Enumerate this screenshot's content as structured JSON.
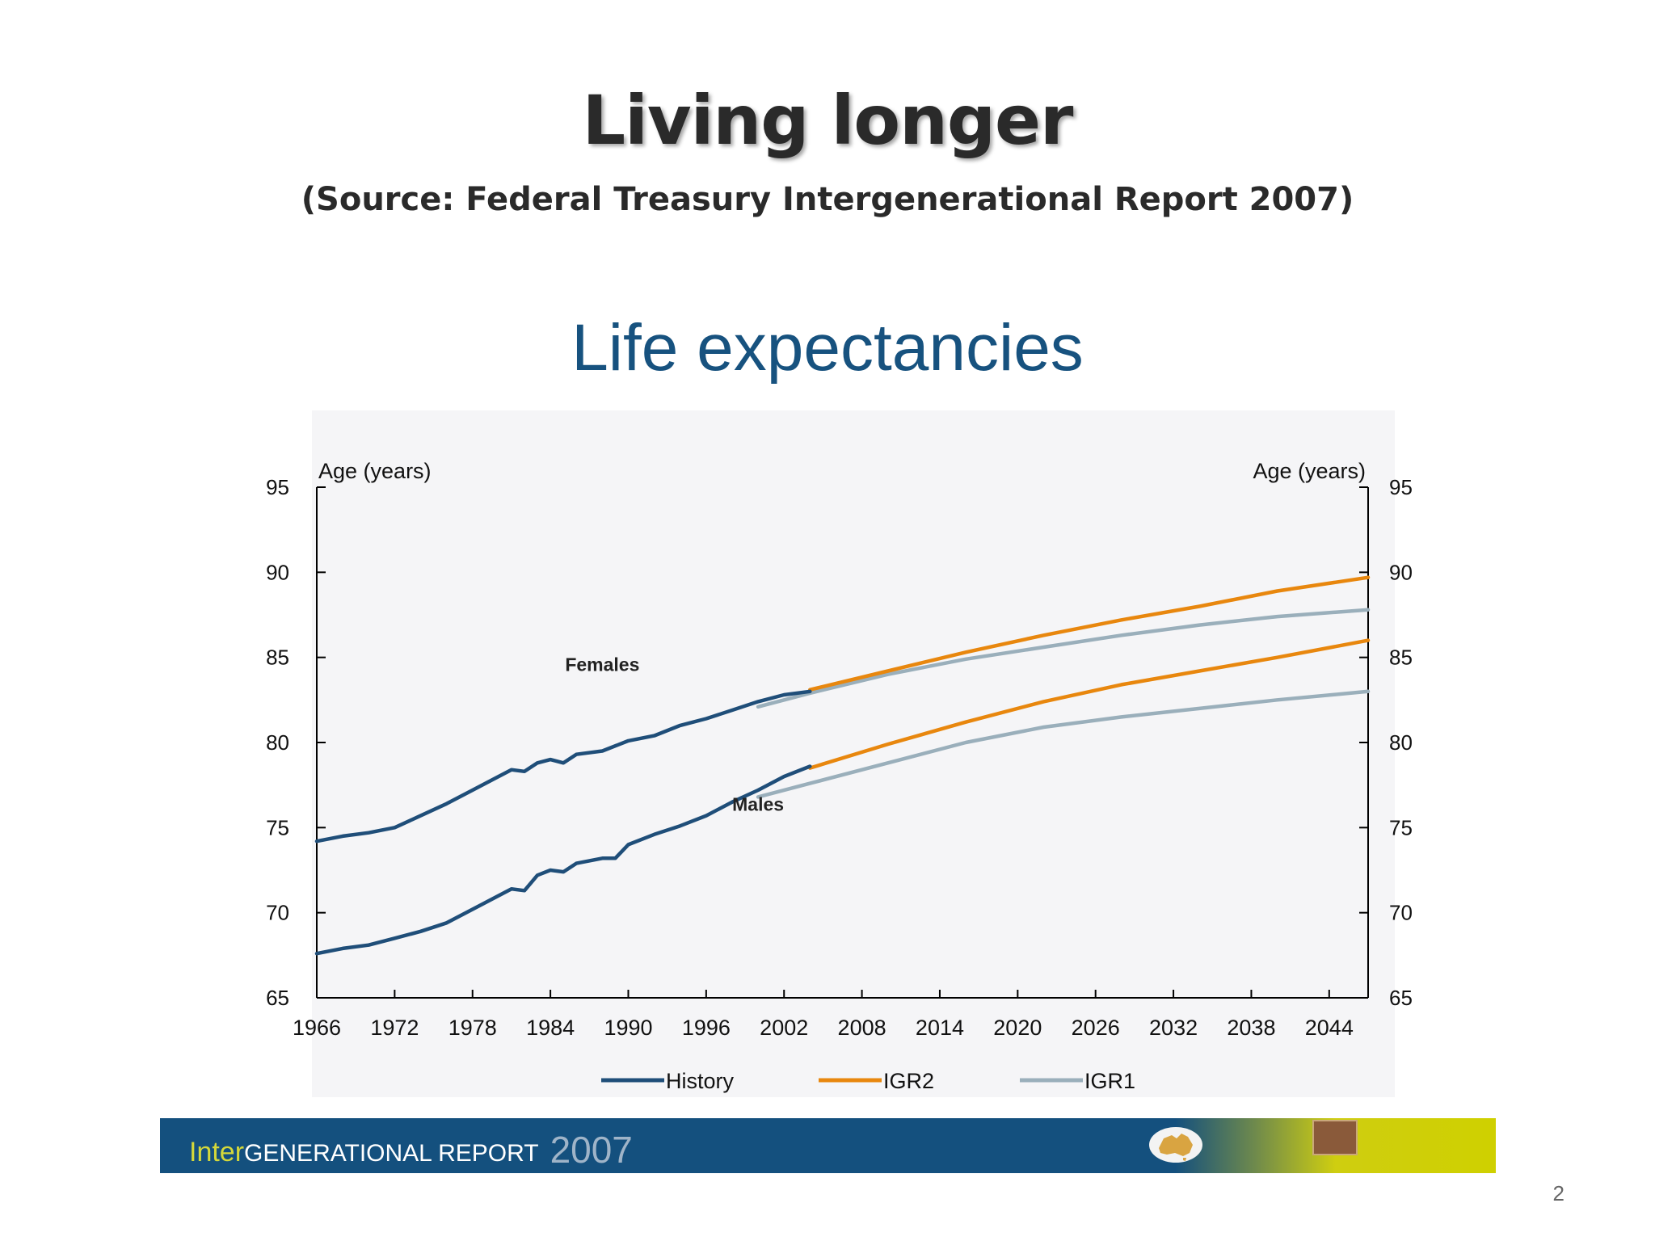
{
  "slide": {
    "title": "Living longer",
    "subtitle": "(Source: Federal Treasury Intergenerational Report 2007)",
    "page_number": "2"
  },
  "banner": {
    "brand_inter": "Inter",
    "brand_generational": "GENERATIONAL REPORT",
    "brand_year": "2007"
  },
  "colors": {
    "history": "#1f4e79",
    "igr2": "#e8870e",
    "igr1": "#9aafbb",
    "chart_title": "#17527f"
  },
  "chart_data": {
    "type": "line",
    "title": "Life expectancies",
    "ylabel_left": "Age (years)",
    "ylabel_right": "Age (years)",
    "ylim": [
      65,
      95
    ],
    "yticks": [
      65,
      70,
      75,
      80,
      85,
      90,
      95
    ],
    "xlim": [
      1966,
      2047
    ],
    "xticks": [
      1966,
      1972,
      1978,
      1984,
      1990,
      1996,
      2002,
      2008,
      2014,
      2020,
      2026,
      2032,
      2038,
      2044
    ],
    "legend": [
      "History",
      "IGR2",
      "IGR1"
    ],
    "legend_position": "bottom",
    "annotations": [
      {
        "text": "Females",
        "x": 1988,
        "y": 84.2
      },
      {
        "text": "Males",
        "x": 2000,
        "y": 76.0
      }
    ],
    "series": [
      {
        "name": "History",
        "group": "Females",
        "x": [
          1966,
          1968,
          1970,
          1972,
          1974,
          1976,
          1978,
          1980,
          1981,
          1982,
          1983,
          1984,
          1985,
          1986,
          1988,
          1990,
          1992,
          1994,
          1996,
          1998,
          2000,
          2002,
          2004
        ],
        "y": [
          74.2,
          74.5,
          74.7,
          75.0,
          75.7,
          76.4,
          77.2,
          78.0,
          78.4,
          78.3,
          78.8,
          79.0,
          78.8,
          79.3,
          79.5,
          80.1,
          80.4,
          81.0,
          81.4,
          81.9,
          82.4,
          82.8,
          83.0
        ]
      },
      {
        "name": "History",
        "group": "Males",
        "x": [
          1966,
          1968,
          1970,
          1972,
          1974,
          1976,
          1978,
          1980,
          1981,
          1982,
          1983,
          1984,
          1985,
          1986,
          1988,
          1989,
          1990,
          1992,
          1994,
          1996,
          1998,
          2000,
          2002,
          2004
        ],
        "y": [
          67.6,
          67.9,
          68.1,
          68.5,
          68.9,
          69.4,
          70.2,
          71.0,
          71.4,
          71.3,
          72.2,
          72.5,
          72.4,
          72.9,
          73.2,
          73.2,
          74.0,
          74.6,
          75.1,
          75.7,
          76.5,
          77.2,
          78.0,
          78.6
        ]
      },
      {
        "name": "IGR2",
        "group": "Females",
        "x": [
          2004,
          2010,
          2016,
          2022,
          2028,
          2034,
          2040,
          2047
        ],
        "y": [
          83.1,
          84.2,
          85.3,
          86.3,
          87.2,
          88.0,
          88.9,
          89.7
        ]
      },
      {
        "name": "IGR2",
        "group": "Males",
        "x": [
          2004,
          2010,
          2016,
          2022,
          2028,
          2034,
          2040,
          2047
        ],
        "y": [
          78.5,
          79.9,
          81.2,
          82.4,
          83.4,
          84.2,
          85.0,
          86.0
        ]
      },
      {
        "name": "IGR1",
        "group": "Females",
        "x": [
          2000,
          2004,
          2010,
          2016,
          2022,
          2028,
          2034,
          2040,
          2047
        ],
        "y": [
          82.1,
          82.9,
          84.0,
          84.9,
          85.6,
          86.3,
          86.9,
          87.4,
          87.8
        ]
      },
      {
        "name": "IGR1",
        "group": "Males",
        "x": [
          2000,
          2004,
          2010,
          2016,
          2022,
          2028,
          2034,
          2040,
          2047
        ],
        "y": [
          76.8,
          77.6,
          78.8,
          80.0,
          80.9,
          81.5,
          82.0,
          82.5,
          83.0
        ]
      }
    ]
  }
}
